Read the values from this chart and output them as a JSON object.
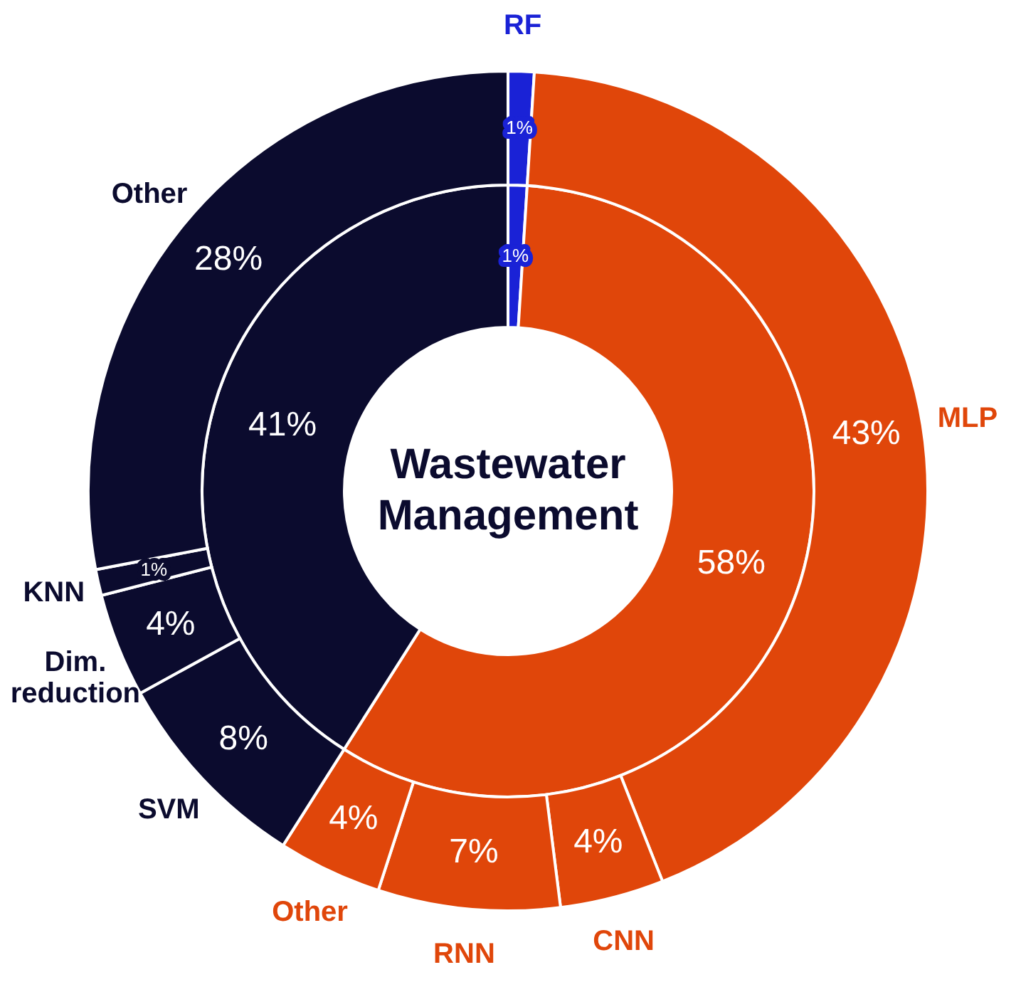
{
  "chart_data": [
    {
      "type": "donut",
      "title": "Wastewater Management",
      "categories": [
        null,
        null,
        null
      ],
      "values": [
        1,
        58,
        41
      ],
      "colors": [
        "#1a22d6",
        "#e0460a",
        "#0b0b2e"
      ],
      "value_labels": [
        "1%",
        "58%",
        "41%"
      ]
    },
    {
      "type": "donut",
      "categories": [
        "RF",
        "MLP",
        "CNN",
        "RNN",
        "Other",
        "SVM",
        "Dim. reduction",
        "KNN",
        "Other"
      ],
      "values": [
        1,
        43,
        4,
        7,
        4,
        8,
        4,
        1,
        28
      ],
      "colors": [
        "#1a22d6",
        "#e0460a",
        "#e0460a",
        "#e0460a",
        "#e0460a",
        "#0b0b2e",
        "#0b0b2e",
        "#0b0b2e",
        "#0b0b2e"
      ],
      "value_labels": [
        "1%",
        "43%",
        "4%",
        "7%",
        "4%",
        "8%",
        "4%",
        "1%",
        "28%"
      ]
    }
  ]
}
